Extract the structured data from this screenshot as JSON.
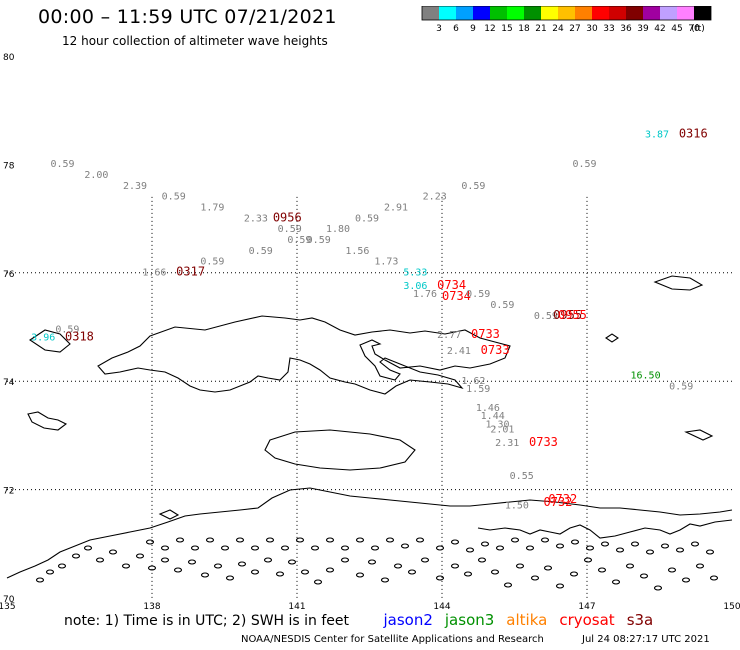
{
  "title": "00:00 – 11:59 UTC 07/21/2021",
  "subtitle": "12 hour collection of altimeter wave heights",
  "colorbar": {
    "unit": "(ft)",
    "colors": [
      "#808080",
      "#00ffff",
      "#00a0ff",
      "#0000ff",
      "#00c000",
      "#00ff00",
      "#009000",
      "#ffff00",
      "#ffc000",
      "#ff8000",
      "#ff0000",
      "#d00000",
      "#800000",
      "#a000a0",
      "#c0a0ff",
      "#ff80ff",
      "#000000"
    ],
    "ticks": [
      "3",
      "6",
      "9",
      "12",
      "15",
      "18",
      "21",
      "24",
      "27",
      "30",
      "33",
      "36",
      "39",
      "42",
      "45",
      "70"
    ]
  },
  "axes": {
    "lon_labels": [
      "135",
      "138",
      "141",
      "144",
      "147",
      "150"
    ],
    "lat_labels": [
      "80",
      "78",
      "76",
      "74",
      "72",
      "70"
    ]
  },
  "observations": [
    {
      "text": "0.59",
      "color": "#808080",
      "lon": 135.9,
      "lat": 77.95
    },
    {
      "text": "2.00",
      "color": "#808080",
      "lon": 136.6,
      "lat": 77.75
    },
    {
      "text": "2.39",
      "color": "#808080",
      "lon": 137.4,
      "lat": 77.55
    },
    {
      "text": "0.59",
      "color": "#808080",
      "lon": 138.2,
      "lat": 77.35
    },
    {
      "text": "1.79",
      "color": "#808080",
      "lon": 139.0,
      "lat": 77.15
    },
    {
      "text": "2.33",
      "color": "#808080",
      "lon": 139.9,
      "lat": 76.95
    },
    {
      "text": "0956",
      "color": "#800000",
      "lon": 140.5,
      "lat": 76.95
    },
    {
      "text": "0.59",
      "color": "#808080",
      "lon": 140.6,
      "lat": 76.75
    },
    {
      "text": "0.59",
      "color": "#808080",
      "lon": 140.8,
      "lat": 76.55
    },
    {
      "text": "0.59",
      "color": "#808080",
      "lon": 141.2,
      "lat": 76.55
    },
    {
      "text": "1.80",
      "color": "#808080",
      "lon": 141.6,
      "lat": 76.75
    },
    {
      "text": "0.59",
      "color": "#808080",
      "lon": 142.2,
      "lat": 76.95
    },
    {
      "text": "2.91",
      "color": "#808080",
      "lon": 142.8,
      "lat": 77.15
    },
    {
      "text": "2.23",
      "color": "#808080",
      "lon": 143.6,
      "lat": 77.35
    },
    {
      "text": "0.59",
      "color": "#808080",
      "lon": 144.4,
      "lat": 77.55
    },
    {
      "text": "0.59",
      "color": "#808080",
      "lon": 146.7,
      "lat": 77.95
    },
    {
      "text": "3.87",
      "color": "#00c8c8",
      "lon": 148.2,
      "lat": 78.5
    },
    {
      "text": "0316",
      "color": "#800000",
      "lon": 148.9,
      "lat": 78.5
    },
    {
      "text": "1.56",
      "color": "#808080",
      "lon": 142.0,
      "lat": 76.35
    },
    {
      "text": "1.73",
      "color": "#808080",
      "lon": 142.6,
      "lat": 76.15
    },
    {
      "text": "0.59",
      "color": "#808080",
      "lon": 139.0,
      "lat": 76.15
    },
    {
      "text": "0.59",
      "color": "#808080",
      "lon": 140.0,
      "lat": 76.35
    },
    {
      "text": "1.66",
      "color": "#808080",
      "lon": 137.8,
      "lat": 75.95
    },
    {
      "text": "0317",
      "color": "#800000",
      "lon": 138.5,
      "lat": 75.95
    },
    {
      "text": "5.33",
      "color": "#00c8c8",
      "lon": 143.2,
      "lat": 75.95
    },
    {
      "text": "3.06",
      "color": "#00c8c8",
      "lon": 143.2,
      "lat": 75.7
    },
    {
      "text": "0734",
      "color": "#ff0000",
      "lon": 143.9,
      "lat": 75.7
    },
    {
      "text": "1.76",
      "color": "#808080",
      "lon": 143.4,
      "lat": 75.55
    },
    {
      "text": "0734",
      "color": "#ff0000",
      "lon": 144.0,
      "lat": 75.5
    },
    {
      "text": "0.59",
      "color": "#808080",
      "lon": 144.5,
      "lat": 75.55
    },
    {
      "text": "0.59",
      "color": "#808080",
      "lon": 145.0,
      "lat": 75.35
    },
    {
      "text": "0.59",
      "color": "#808080",
      "lon": 145.9,
      "lat": 75.15
    },
    {
      "text": "0955",
      "color": "#800000",
      "lon": 146.3,
      "lat": 75.15
    },
    {
      "text": "0955",
      "color": "#ff0000",
      "lon": 146.4,
      "lat": 75.15
    },
    {
      "text": "0.59",
      "color": "#808080",
      "lon": 136.0,
      "lat": 74.9
    },
    {
      "text": "3.96",
      "color": "#00c8c8",
      "lon": 135.5,
      "lat": 74.75
    },
    {
      "text": "0318",
      "color": "#800000",
      "lon": 136.2,
      "lat": 74.75
    },
    {
      "text": "2.77",
      "color": "#808080",
      "lon": 143.9,
      "lat": 74.8
    },
    {
      "text": "0733",
      "color": "#ff0000",
      "lon": 144.6,
      "lat": 74.8
    },
    {
      "text": "2.41",
      "color": "#808080",
      "lon": 144.1,
      "lat": 74.5
    },
    {
      "text": "0733",
      "color": "#ff0000",
      "lon": 144.8,
      "lat": 74.5
    },
    {
      "text": "1.62",
      "color": "#808080",
      "lon": 144.4,
      "lat": 73.95
    },
    {
      "text": "1.59",
      "color": "#808080",
      "lon": 144.5,
      "lat": 73.8
    },
    {
      "text": "16.50",
      "color": "#009000",
      "lon": 147.9,
      "lat": 74.05
    },
    {
      "text": "0.59",
      "color": "#808080",
      "lon": 148.7,
      "lat": 73.85
    },
    {
      "text": "1.46",
      "color": "#808080",
      "lon": 144.7,
      "lat": 73.45
    },
    {
      "text": "1.44",
      "color": "#808080",
      "lon": 144.8,
      "lat": 73.3
    },
    {
      "text": "1.30",
      "color": "#808080",
      "lon": 144.9,
      "lat": 73.15
    },
    {
      "text": "2.01",
      "color": "#808080",
      "lon": 145.0,
      "lat": 73.05
    },
    {
      "text": "2.31",
      "color": "#808080",
      "lon": 145.1,
      "lat": 72.8
    },
    {
      "text": "0733",
      "color": "#ff0000",
      "lon": 145.8,
      "lat": 72.8
    },
    {
      "text": "0.55",
      "color": "#808080",
      "lon": 145.4,
      "lat": 72.2
    },
    {
      "text": "0732",
      "color": "#ff0000",
      "lon": 146.1,
      "lat": 71.7
    },
    {
      "text": "0732",
      "color": "#ff0000",
      "lon": 146.2,
      "lat": 71.75
    },
    {
      "text": "1.50",
      "color": "#808080",
      "lon": 145.3,
      "lat": 71.65
    }
  ],
  "note": {
    "text": "note: 1) Time is in UTC; 2) SWH is in feet",
    "satellites": [
      {
        "name": "jason2",
        "color": "#0000ff"
      },
      {
        "name": "jason3",
        "color": "#009000"
      },
      {
        "name": "altika",
        "color": "#ff8000"
      },
      {
        "name": "cryosat",
        "color": "#ff0000"
      },
      {
        "name": "s3a",
        "color": "#800000"
      }
    ]
  },
  "footer": {
    "credit": "NOAA/NESDIS Center for Satellite Applications and Research",
    "generated": "Jul 24 08:27:17 UTC 2021"
  }
}
